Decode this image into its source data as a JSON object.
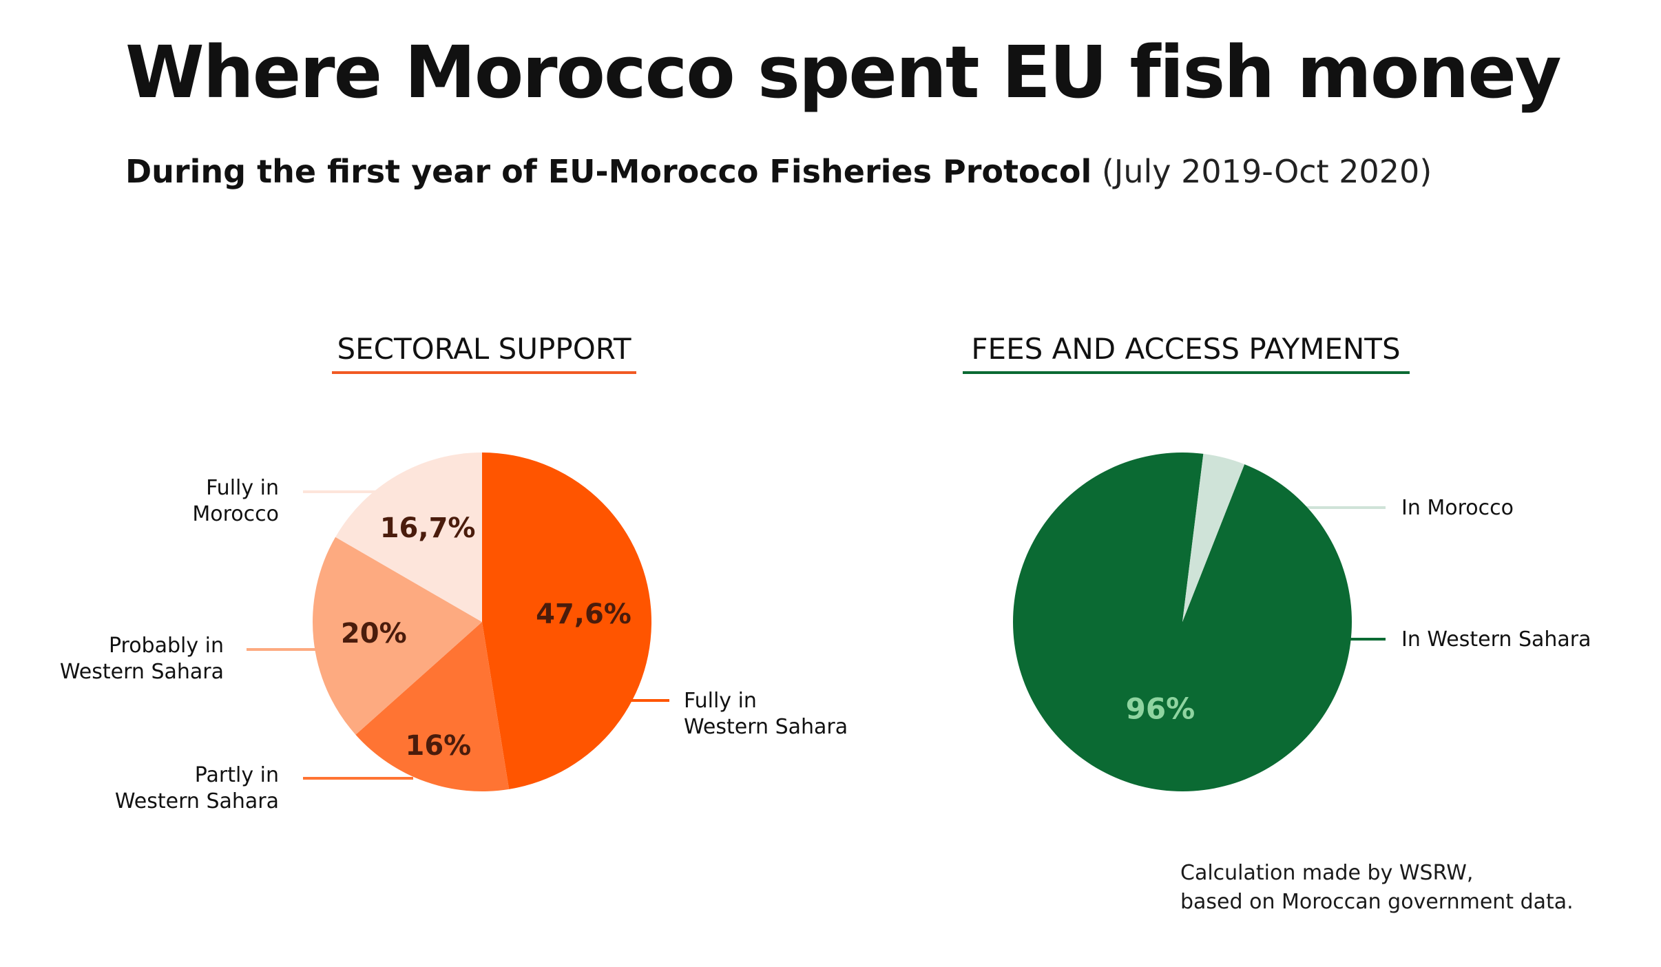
{
  "title": "Where Morocco spent EU fish money",
  "subtitle": {
    "main": "During the first year of EU-Morocco Fisheries Protocol",
    "period": "(July 2019-Oct 2020)"
  },
  "colors": {
    "sectoral_accent": "#f15a24",
    "fees_accent": "#0b6a33"
  },
  "chart_data": [
    {
      "type": "pie",
      "title": "SECTORAL SUPPORT",
      "slices": [
        {
          "label": "Fully in Western Sahara",
          "label_lines": [
            "Fully in",
            "Western Sahara"
          ],
          "value": 47.6,
          "value_label": "47,6%",
          "color": "#ff5500",
          "text_color": "#4a1c0c"
        },
        {
          "label": "Partly in Western Sahara",
          "label_lines": [
            "Partly in",
            "Western Sahara"
          ],
          "value": 16,
          "value_label": "16%",
          "color": "#ff7433",
          "text_color": "#4a1c0c"
        },
        {
          "label": "Probably in Western Sahara",
          "label_lines": [
            "Probably in",
            "Western Sahara"
          ],
          "value": 20,
          "value_label": "20%",
          "color": "#fdaa80",
          "text_color": "#4a1c0c"
        },
        {
          "label": "Fully in Morocco",
          "label_lines": [
            "Fully in",
            "Morocco"
          ],
          "value": 16.7,
          "value_label": "16,7%",
          "color": "#fde5db",
          "text_color": "#4a1c0c"
        }
      ]
    },
    {
      "type": "pie",
      "title": "FEES AND ACCESS PAYMENTS",
      "slices": [
        {
          "label": "In Western Sahara",
          "label_lines": [
            "In Western Sahara"
          ],
          "value": 96,
          "value_label": "96%",
          "color": "#0b6a33",
          "text_color": "#8fd4a0"
        },
        {
          "label": "In Morocco",
          "label_lines": [
            "In Morocco"
          ],
          "value": 4,
          "value_label": "",
          "color": "#cfe3d8",
          "text_color": "#0b6a33"
        }
      ]
    }
  ],
  "note": {
    "line1": "Calculation made by WSRW,",
    "line2": "based on Moroccan government data."
  }
}
